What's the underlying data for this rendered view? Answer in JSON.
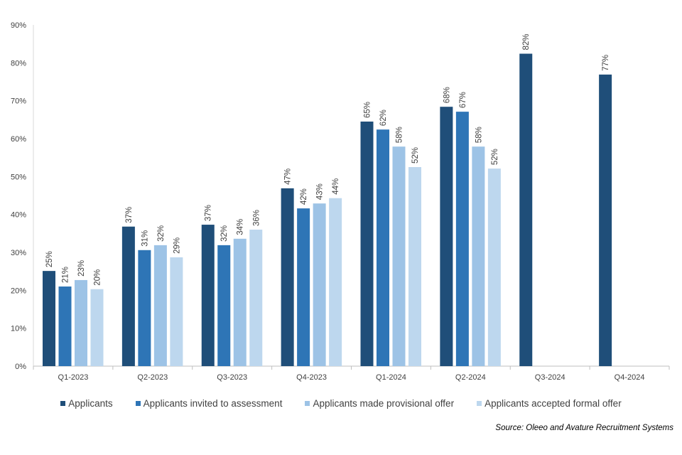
{
  "chart_data": {
    "type": "bar",
    "title": "",
    "xlabel": "",
    "ylabel": "",
    "ylim": [
      0,
      90
    ],
    "yticks": [
      "0%",
      "10%",
      "20%",
      "30%",
      "40%",
      "50%",
      "60%",
      "70%",
      "80%",
      "90%"
    ],
    "categories": [
      "Q1-2023",
      "Q2-2023",
      "Q3-2023",
      "Q4-2023",
      "Q1-2024",
      "Q2-2024",
      "Q3-2024",
      "Q4-2024"
    ],
    "series": [
      {
        "name": "Applicants",
        "color": "#1f4e79",
        "values": [
          25.1,
          36.8,
          37.3,
          46.9,
          64.5,
          68.4,
          82.4,
          76.9
        ],
        "labels": [
          "25%",
          "37%",
          "37%",
          "47%",
          "65%",
          "68%",
          "82%",
          "77%"
        ]
      },
      {
        "name": "Applicants invited to assessment",
        "color": "#2e75b6",
        "values": [
          21.0,
          30.6,
          31.9,
          41.6,
          62.4,
          67.1,
          null,
          null
        ],
        "labels": [
          "21%",
          "31%",
          "32%",
          "42%",
          "62%",
          "67%",
          null,
          null
        ]
      },
      {
        "name": "Applicants made provisional offer",
        "color": "#9dc3e6",
        "values": [
          22.7,
          31.9,
          33.6,
          42.9,
          57.9,
          57.9,
          null,
          null
        ],
        "labels": [
          "23%",
          "32%",
          "34%",
          "43%",
          "58%",
          "58%",
          null,
          null
        ]
      },
      {
        "name": "Applicants accepted formal offer",
        "color": "#bdd7ee",
        "values": [
          20.3,
          28.7,
          36.0,
          44.3,
          52.5,
          52.1,
          null,
          null
        ],
        "labels": [
          "20%",
          "29%",
          "36%",
          "44%",
          "52%",
          "52%",
          null,
          null
        ]
      }
    ],
    "legend_position": "bottom",
    "grid": false
  },
  "source": "Source:  Oleeo and Avature Recruitment  Systems"
}
